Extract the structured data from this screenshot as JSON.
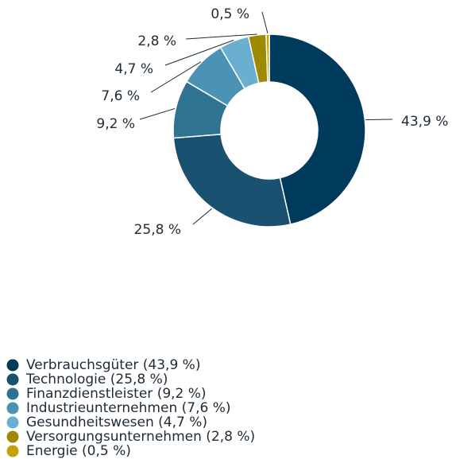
{
  "chart_data": {
    "type": "donut",
    "categories": [
      "Verbrauchsgüter",
      "Technologie",
      "Finanzdienstleister",
      "Industrieunternehmen",
      "Gesundheitswesen",
      "Versorgungsunternehmen",
      "Energie"
    ],
    "values": [
      43.9,
      25.8,
      9.2,
      7.6,
      4.7,
      2.8,
      0.5
    ],
    "value_labels": [
      "43,9 %",
      "25,8 %",
      "9,2 %",
      "7,6 %",
      "4,7 %",
      "2,8 %",
      "0,5 %"
    ],
    "legend_labels": [
      "Verbrauchsgüter (43,9 %)",
      "Technologie (25,8 %)",
      "Finanzdienstleister (9,2 %)",
      "Industrieunternehmen (7,6 %)",
      "Gesundheitswesen (4,7 %)",
      "Versorgungsunternehmen (2,8 %)",
      "Energie (0,5 %)"
    ],
    "colors": [
      "#003a5c",
      "#1a5170",
      "#2f7391",
      "#4a93b5",
      "#6aafd0",
      "#9e8a00",
      "#c3a400"
    ],
    "legend": "bottom-left"
  }
}
